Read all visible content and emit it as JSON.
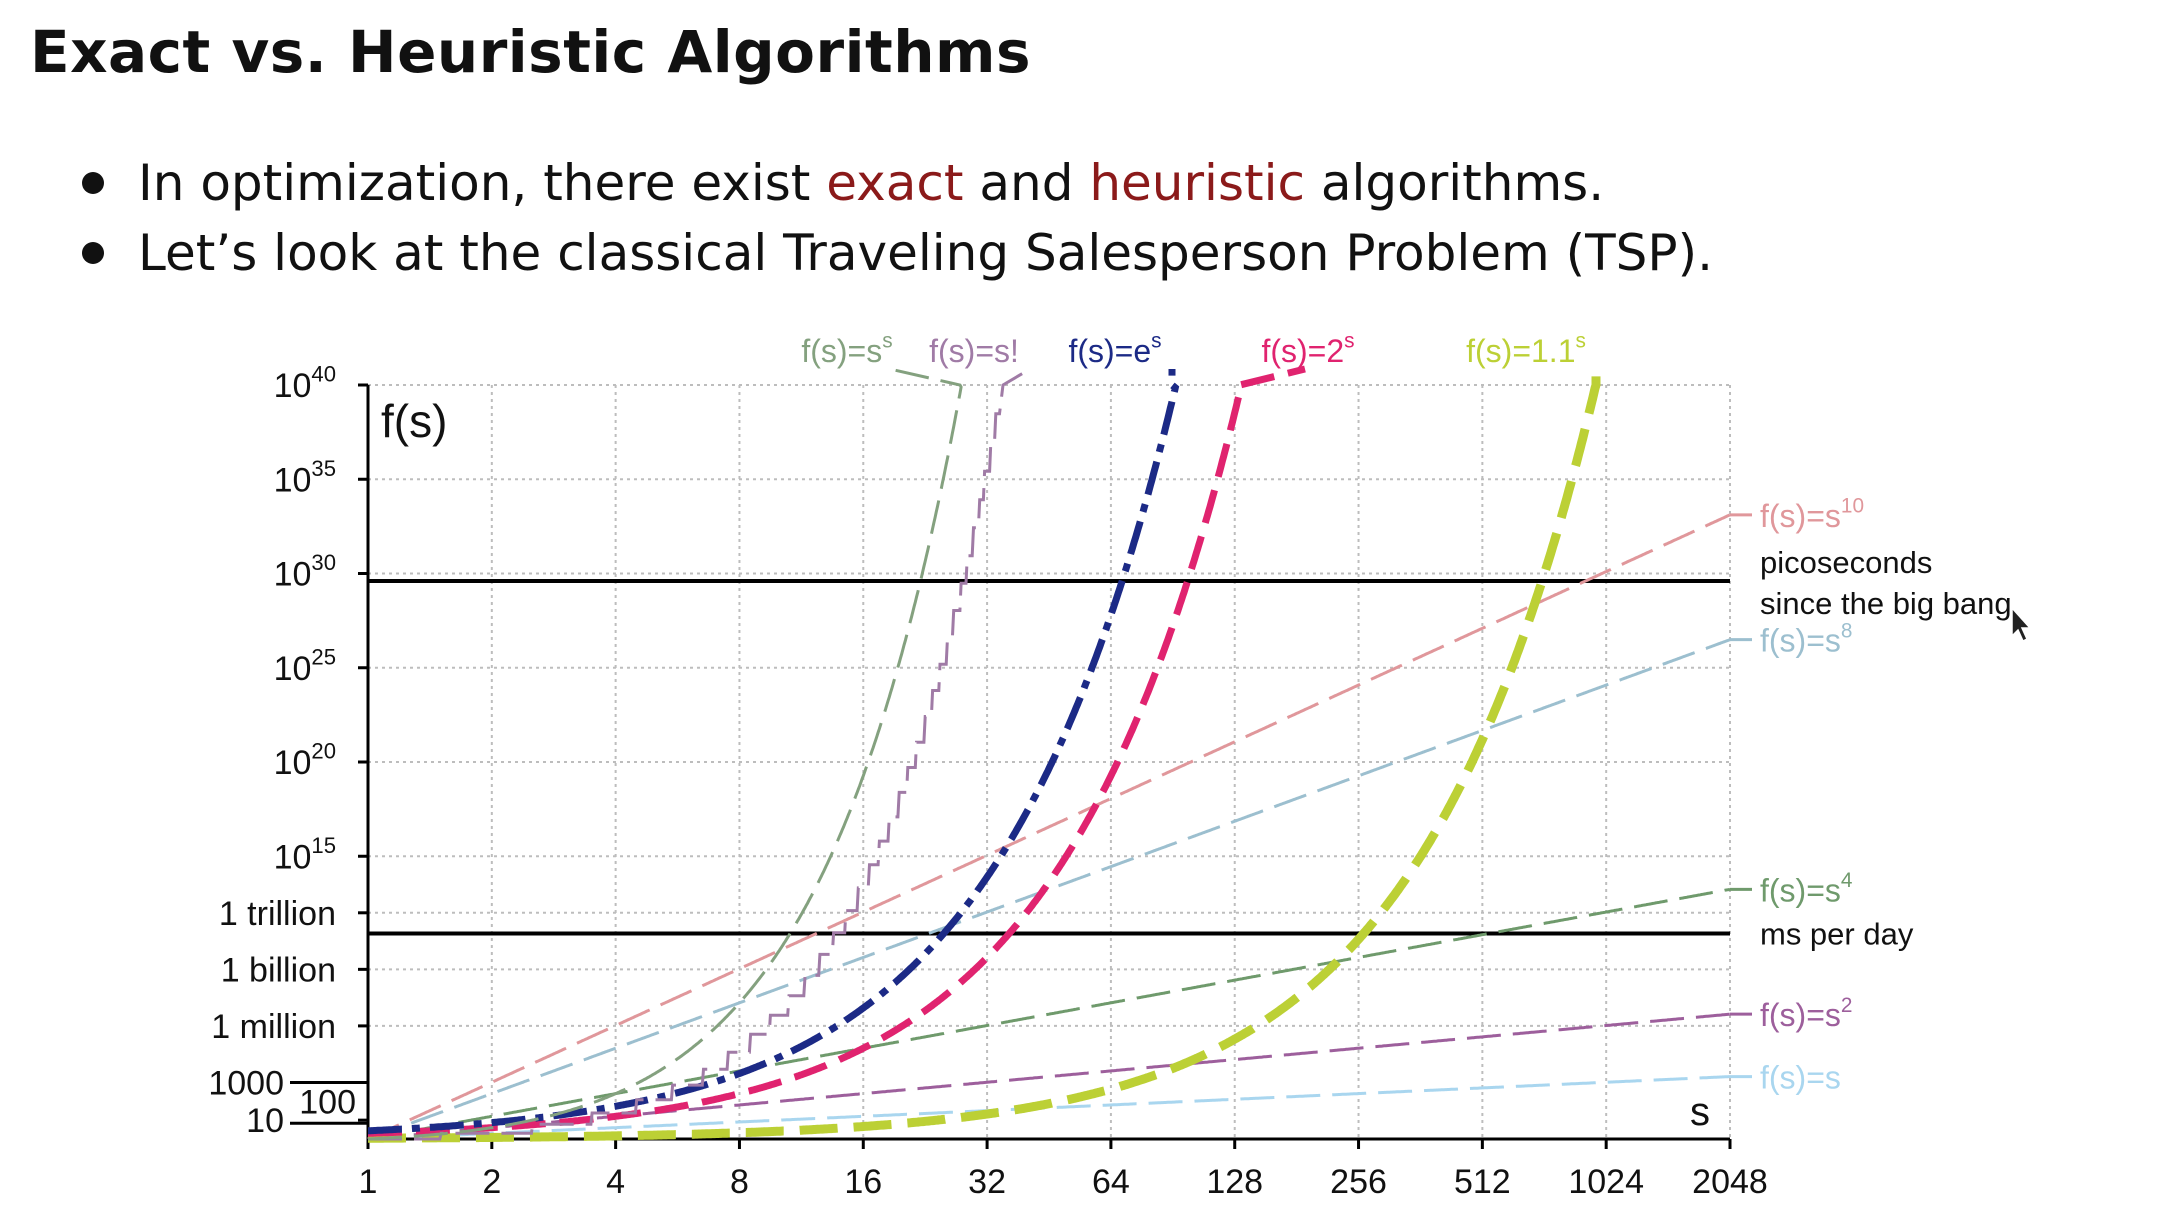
{
  "slide": {
    "title": "Exact vs. Heuristic Algorithms",
    "bullets": [
      {
        "pre": "In optimization, there exist ",
        "h1": "exact",
        "mid": " and ",
        "h2": "heuristic",
        "post": " algorithms."
      },
      {
        "pre": "Let’s look at the classical Traveling Salesperson Problem (TSP).",
        "h1": "",
        "mid": "",
        "h2": "",
        "post": ""
      }
    ]
  },
  "chart_data": {
    "type": "line",
    "ylabel": "f(s)",
    "xlabel": "s",
    "x_scale": "log2",
    "y_scale": "log10",
    "xlim": [
      1,
      2048
    ],
    "ylim": [
      1,
      1e+40
    ],
    "x_ticks": [
      1,
      2,
      4,
      8,
      16,
      32,
      64,
      128,
      256,
      512,
      1024,
      2048
    ],
    "x_tick_labels": [
      "1",
      "2",
      "4",
      "8",
      "16",
      "32",
      "64",
      "128",
      "256",
      "512",
      "1024",
      "2048"
    ],
    "y_ticks": [
      {
        "label": "10",
        "exp": "40",
        "log": 40
      },
      {
        "label": "10",
        "exp": "35",
        "log": 35
      },
      {
        "label": "10",
        "exp": "30",
        "log": 30
      },
      {
        "label": "10",
        "exp": "25",
        "log": 25
      },
      {
        "label": "10",
        "exp": "20",
        "log": 20
      },
      {
        "label": "10",
        "exp": "15",
        "log": 15
      },
      {
        "label": "1 trillion",
        "exp": "",
        "log": 12
      },
      {
        "label": "1 billion",
        "exp": "",
        "log": 9
      },
      {
        "label": "1 million",
        "exp": "",
        "log": 6
      },
      {
        "label": "1000",
        "exp": "",
        "log": 3
      },
      {
        "label": "100",
        "exp": "",
        "log": 2
      },
      {
        "label": "10",
        "exp": "",
        "log": 1
      }
    ],
    "grid": true,
    "reference_lines": [
      {
        "log_value": 29.6,
        "label_lines": [
          "picoseconds",
          "since the big bang"
        ]
      },
      {
        "log_value": 10.9,
        "label_lines": [
          "ms per day"
        ]
      }
    ],
    "series": [
      {
        "name": "f(s)=s",
        "base": "f(s)=s",
        "sup": "",
        "func": "s",
        "color": "#a9d6ef",
        "width": 3,
        "dash": "34,12",
        "label_at": "right"
      },
      {
        "name": "f(s)=s2",
        "base": "f(s)=s",
        "sup": "2",
        "func": "s2",
        "color": "#9d5f9c",
        "width": 3,
        "dash": "34,12",
        "label_at": "right"
      },
      {
        "name": "f(s)=s4",
        "base": "f(s)=s",
        "sup": "4",
        "func": "s4",
        "color": "#6f9a6c",
        "width": 3,
        "dash": "34,12",
        "label_at": "right"
      },
      {
        "name": "f(s)=s8",
        "base": "f(s)=s",
        "sup": "8",
        "func": "s8",
        "color": "#9cbfcf",
        "width": 3,
        "dash": "34,12",
        "label_at": "right"
      },
      {
        "name": "f(s)=s10",
        "base": "f(s)=s",
        "sup": "10",
        "func": "s10",
        "color": "#e0979b",
        "width": 3,
        "dash": "34,12",
        "label_at": "right"
      },
      {
        "name": "f(s)=1.1s",
        "base": "f(s)=1.1",
        "sup": "s",
        "func": "1.1^s",
        "color": "#bcd035",
        "width": 9,
        "dash": "38,16",
        "label_at": "top"
      },
      {
        "name": "f(s)=2s",
        "base": "f(s)=2",
        "sup": "s",
        "func": "2^s",
        "color": "#e0236f",
        "width": 7,
        "dash": "34,14",
        "label_at": "top"
      },
      {
        "name": "f(s)=es",
        "base": "f(s)=e",
        "sup": "s",
        "func": "e^s",
        "color": "#1c2a86",
        "width": 7,
        "dash": "34,10,8,10",
        "label_at": "top"
      },
      {
        "name": "f(s)=s!",
        "base": "f(s)=s!",
        "sup": "",
        "func": "s!",
        "color": "#a07ba6",
        "width": 3,
        "dash": "34,12",
        "label_at": "top"
      },
      {
        "name": "f(s)=ss",
        "base": "f(s)=s",
        "sup": "s",
        "func": "s^s",
        "color": "#84a17f",
        "width": 3,
        "dash": "34,12",
        "label_at": "top"
      }
    ]
  }
}
